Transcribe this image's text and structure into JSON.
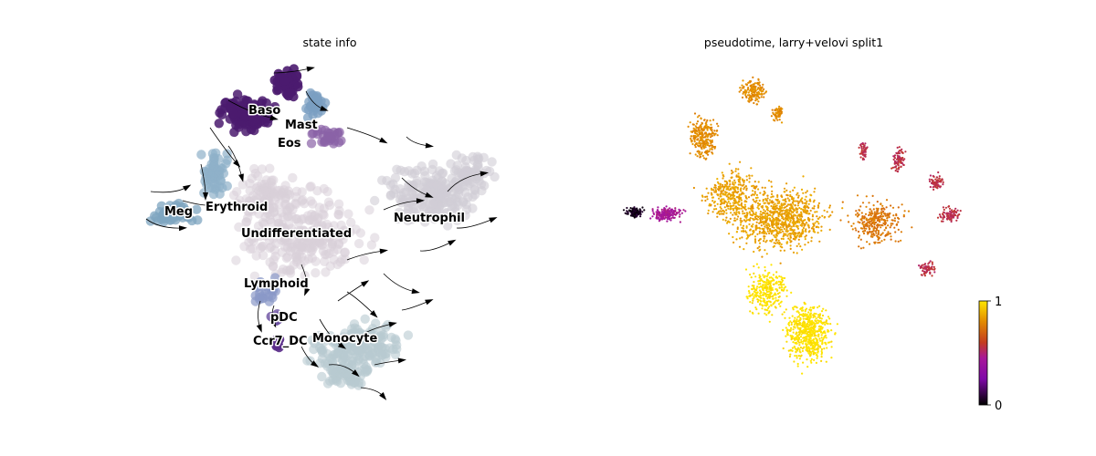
{
  "chart_data": [
    {
      "type": "scatter",
      "title": "state info",
      "kind": "UMAP embedding with RNA-velocity streamlines, colored by cell state",
      "streamlines": true,
      "axes_visible": false,
      "legend": "on data",
      "state_colors": {
        "Baso": "#4b1b6f",
        "Mast": "#7b9fc2",
        "Eos": "#8a63a6",
        "Erythroid": "#8fb1c9",
        "Meg": "#7fa5c0",
        "Undifferentiated": "#d9d0d8",
        "Neutrophil": "#d0cdd6",
        "Lymphoid": "#8a98c8",
        "pDC": "#6a4fa0",
        "Ccr7_DC": "#5b2d8a",
        "Monocyte": "#b7c9d1"
      },
      "labels": [
        "Baso",
        "Mast",
        "Eos",
        "Meg",
        "Erythroid",
        "Undifferentiated",
        "Neutrophil",
        "Lymphoid",
        "pDC",
        "Ccr7_DC",
        "Monocyte"
      ]
    },
    {
      "type": "scatter",
      "title": "pseudotime, larry+velovi split1",
      "kind": "UMAP embedding colored by continuous pseudotime",
      "axes_visible": false,
      "colormap": "gnuplot",
      "colorbar": {
        "min": 0,
        "max": 1,
        "ticks": [
          "0",
          "1"
        ]
      },
      "regions": [
        {
          "name": "Meg branch tip",
          "value": 0.05
        },
        {
          "name": "Meg branch",
          "value": 0.45
        },
        {
          "name": "Baso/Mast branches",
          "value": 0.8
        },
        {
          "name": "Undifferentiated core",
          "value": 0.85
        },
        {
          "name": "Neutrophil tips",
          "value": 0.55
        },
        {
          "name": "Monocyte region",
          "value": 1.0
        }
      ]
    }
  ],
  "left": {
    "title": "state info",
    "labels": {
      "baso": "Baso",
      "mast": "Mast",
      "eos": "Eos",
      "meg": "Meg",
      "erythroid": "Erythroid",
      "undifferentiated": "Undifferentiated",
      "neutrophil": "Neutrophil",
      "lymphoid": "Lymphoid",
      "pdc": "pDC",
      "ccr7dc": "Ccr7_DC",
      "monocyte": "Monocyte"
    }
  },
  "right": {
    "title": "pseudotime, larry+velovi split1",
    "colorbar": {
      "max_label": "1",
      "min_label": "0"
    }
  }
}
